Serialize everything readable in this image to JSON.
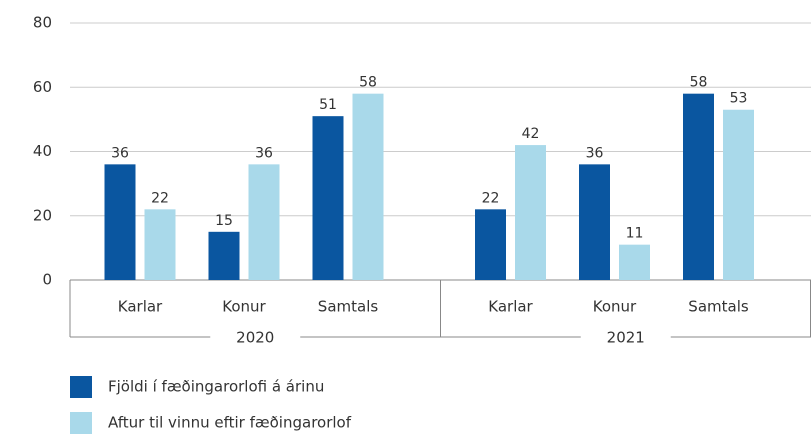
{
  "chart_data": {
    "type": "bar",
    "categories": [
      "Karlar",
      "Konur",
      "Samtals",
      "Karlar",
      "Konur",
      "Samtals"
    ],
    "groups": [
      "2020",
      "2021"
    ],
    "series": [
      {
        "name": "Fjöldi í fæðingarorlofi á árinu",
        "color": "#0a56a0",
        "values": [
          36,
          15,
          51,
          22,
          36,
          58
        ]
      },
      {
        "name": "Aftur til vinnu eftir fæðingarorlof",
        "color": "#a9d9ea",
        "values": [
          22,
          36,
          58,
          42,
          11,
          53
        ]
      }
    ],
    "ylim": [
      0,
      80
    ],
    "yticks": [
      0,
      20,
      40,
      60,
      80
    ],
    "grid": true,
    "legend": "bottom-left"
  }
}
